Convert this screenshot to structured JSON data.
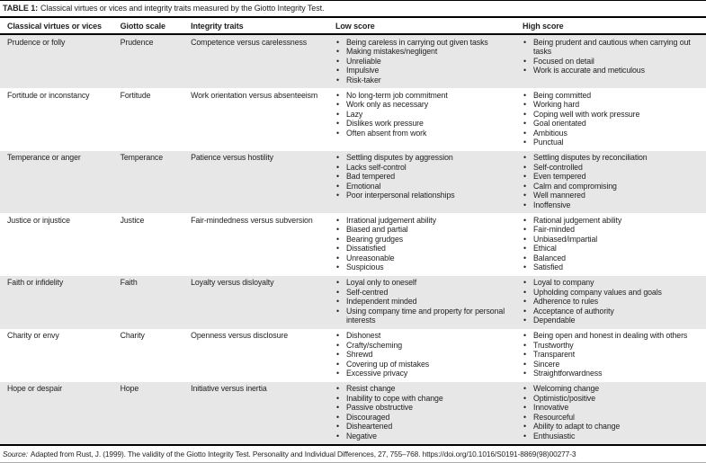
{
  "title": {
    "label": "TABLE 1:",
    "text": "Classical virtues or vices and integrity traits measured by the Giotto Integrity Test."
  },
  "columns": [
    "Classical virtues or vices",
    "Giotto scale",
    "Integrity traits",
    "Low score",
    "High score"
  ],
  "rows": [
    {
      "virtue": "Prudence or folly",
      "scale": "Prudence",
      "trait": "Competence versus carelessness",
      "low": [
        "Being careless in carrying out given tasks",
        "Making mistakes/negligent",
        "Unreliable",
        "Impulsive",
        "Risk-taker"
      ],
      "high": [
        "Being prudent and cautious when carrying out tasks",
        "Focused on detail",
        "Work is accurate and meticulous"
      ]
    },
    {
      "virtue": "Fortitude or inconstancy",
      "scale": "Fortitude",
      "trait": "Work orientation versus absenteeism",
      "low": [
        "No long-term job commitment",
        "Work only as necessary",
        "Lazy",
        "Dislikes work pressure",
        "Often absent from work"
      ],
      "high": [
        "Being committed",
        "Working hard",
        "Coping well with work pressure",
        "Goal orientated",
        "Ambitious",
        "Punctual"
      ]
    },
    {
      "virtue": "Temperance or anger",
      "scale": "Temperance",
      "trait": "Patience versus hostility",
      "low": [
        "Settling disputes by aggression",
        "Lacks self-control",
        "Bad tempered",
        "Emotional",
        "Poor interpersonal relationships"
      ],
      "high": [
        "Settling disputes by reconciliation",
        "Self-controlled",
        "Even tempered",
        "Calm and compromising",
        "Well mannered",
        "Inoffensive"
      ]
    },
    {
      "virtue": "Justice or injustice",
      "scale": "Justice",
      "trait": "Fair-mindedness versus subversion",
      "low": [
        "Irrational judgement ability",
        "Biased and partial",
        "Bearing grudges",
        "Dissatisfied",
        "Unreasonable",
        "Suspicious"
      ],
      "high": [
        "Rational judgement ability",
        "Fair-minded",
        "Unbiased/impartial",
        "Ethical",
        "Balanced",
        "Satisfied"
      ]
    },
    {
      "virtue": "Faith or infidelity",
      "scale": "Faith",
      "trait": "Loyalty versus disloyalty",
      "low": [
        "Loyal only to oneself",
        "Self-centred",
        "Independent minded",
        "Using company time and property for personal interests"
      ],
      "high": [
        "Loyal to company",
        "Upholding company values and goals",
        "Adherence to rules",
        "Acceptance of authority",
        "Dependable"
      ]
    },
    {
      "virtue": "Charity or envy",
      "scale": "Charity",
      "trait": "Openness versus disclosure",
      "low": [
        "Dishonest",
        "Crafty/scheming",
        "Shrewd",
        "Covering up of mistakes",
        "Excessive privacy"
      ],
      "high": [
        "Being open and honest in dealing with others",
        "Trustworthy",
        "Transparent",
        "Sincere",
        "Straightforwardness"
      ]
    },
    {
      "virtue": "Hope or despair",
      "scale": "Hope",
      "trait": "Initiative versus inertia",
      "low": [
        "Resist change",
        "Inability to cope with change",
        "Passive obstructive",
        "Discouraged",
        "Disheartened",
        "Negative"
      ],
      "high": [
        "Welcoming change",
        "Optimistic/positive",
        "Innovative",
        "Resourceful",
        "Ability to adapt to change",
        "Enthusiastic"
      ]
    }
  ],
  "source": {
    "label": "Source:",
    "text": "Adapted from Rust, J. (1999). The validity of the Giotto Integrity Test. Personality and Individual Differences, 27, 755–768. https://doi.org/10.1016/S0191-8869(98)00277-3"
  },
  "colors": {
    "row_stripe": "#e7e7e7",
    "rule": "#000000",
    "text": "#1f1f1f"
  }
}
